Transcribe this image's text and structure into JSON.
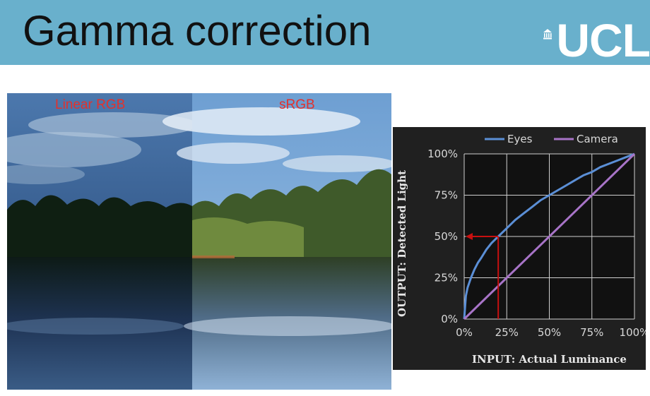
{
  "header": {
    "title": "Gamma correction",
    "logo_text": "UCL",
    "background": "#69b0cc"
  },
  "photo": {
    "left_label": "Linear RGB",
    "right_label": "sRGB",
    "label_color": "#e3312c"
  },
  "chart_data": {
    "type": "line",
    "xlabel": "INPUT: Actual Luminance",
    "ylabel": "OUTPUT: Detected Light",
    "xlim": [
      0,
      100
    ],
    "ylim": [
      0,
      100
    ],
    "x_ticks": [
      "0%",
      "25%",
      "50%",
      "75%",
      "100%"
    ],
    "y_ticks": [
      "0%",
      "25%",
      "50%",
      "75%",
      "100%"
    ],
    "grid": true,
    "legend": "top",
    "series": [
      {
        "name": "Eyes",
        "color": "#5b8fd6",
        "x": [
          0,
          1,
          2,
          4,
          6,
          8,
          10,
          13,
          16,
          20,
          25,
          30,
          35,
          40,
          45,
          50,
          55,
          60,
          65,
          70,
          75,
          80,
          85,
          90,
          95,
          100
        ],
        "y": [
          0,
          14,
          19,
          25,
          30,
          34,
          37,
          42,
          46,
          50,
          55,
          60,
          64,
          68,
          72,
          75,
          78,
          81,
          84,
          87,
          89,
          92,
          94,
          96,
          98,
          100
        ]
      },
      {
        "name": "Camera",
        "color": "#a874c8",
        "x": [
          0,
          100
        ],
        "y": [
          0,
          100
        ]
      }
    ],
    "annotation": {
      "color": "#c81010",
      "x": 20,
      "y": 50
    }
  }
}
